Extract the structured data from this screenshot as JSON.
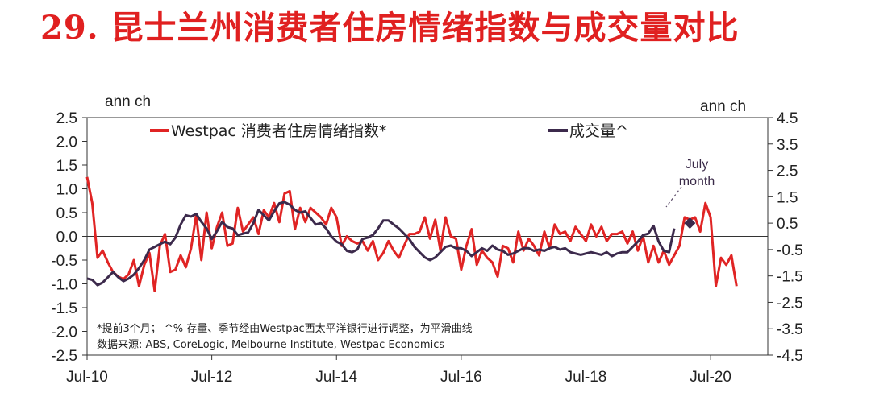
{
  "slide": {
    "title": "29. 昆士兰州消费者住房情绪指数与成交量对比"
  },
  "chart_data": {
    "type": "line",
    "left_unit": "ann ch",
    "right_unit": "ann ch",
    "y_left": {
      "min": -2.5,
      "max": 2.5,
      "ticks": [
        "2.5",
        "2.0",
        "1.5",
        "1.0",
        "0.5",
        "0.0",
        "-0.5",
        "-1.0",
        "-1.5",
        "-2.0",
        "-2.5"
      ]
    },
    "y_right": {
      "min": -4.5,
      "max": 4.5,
      "ticks": [
        "4.5",
        "3.5",
        "2.5",
        "1.5",
        "0.5",
        "-0.5",
        "-1.5",
        "-2.5",
        "-3.5",
        "-4.5"
      ]
    },
    "x_range": [
      "2010-07",
      "2021-06"
    ],
    "x_ticks": [
      "Jul-10",
      "Jul-12",
      "Jul-14",
      "Jul-16",
      "Jul-18",
      "Jul-20"
    ],
    "grid": false,
    "legend": {
      "position": "top",
      "entries": [
        "Westpac 消费者住房情绪指数*",
        "成交量^"
      ]
    },
    "series": [
      {
        "name": "Westpac 消费者住房情绪指数*",
        "axis": "left",
        "color": "#e02424",
        "points": [
          [
            "2010-07",
            1.25
          ],
          [
            "2010-08",
            0.7
          ],
          [
            "2010-09",
            -0.45
          ],
          [
            "2010-10",
            -0.3
          ],
          [
            "2010-11",
            -0.55
          ],
          [
            "2010-12",
            -0.75
          ],
          [
            "2011-01",
            -0.85
          ],
          [
            "2011-02",
            -0.9
          ],
          [
            "2011-03",
            -0.8
          ],
          [
            "2011-04",
            -0.5
          ],
          [
            "2011-05",
            -1.05
          ],
          [
            "2011-06",
            -0.6
          ],
          [
            "2011-07",
            -0.35
          ],
          [
            "2011-08",
            -1.15
          ],
          [
            "2011-09",
            -0.2
          ],
          [
            "2011-10",
            0.05
          ],
          [
            "2011-11",
            -0.75
          ],
          [
            "2011-12",
            -0.7
          ],
          [
            "2012-01",
            -0.4
          ],
          [
            "2012-02",
            -0.65
          ],
          [
            "2012-03",
            -0.25
          ],
          [
            "2012-04",
            0.45
          ],
          [
            "2012-05",
            -0.5
          ],
          [
            "2012-06",
            0.5
          ],
          [
            "2012-07",
            -0.25
          ],
          [
            "2012-08",
            0.2
          ],
          [
            "2012-09",
            0.5
          ],
          [
            "2012-10",
            -0.2
          ],
          [
            "2012-11",
            -0.15
          ],
          [
            "2012-12",
            0.6
          ],
          [
            "2013-01",
            0.1
          ],
          [
            "2013-02",
            0.25
          ],
          [
            "2013-03",
            0.4
          ],
          [
            "2013-04",
            0.05
          ],
          [
            "2013-05",
            0.55
          ],
          [
            "2013-06",
            0.4
          ],
          [
            "2013-07",
            0.7
          ],
          [
            "2013-08",
            0.3
          ],
          [
            "2013-09",
            0.9
          ],
          [
            "2013-10",
            0.95
          ],
          [
            "2013-11",
            0.15
          ],
          [
            "2013-12",
            0.6
          ],
          [
            "2014-01",
            0.3
          ],
          [
            "2014-02",
            0.6
          ],
          [
            "2014-03",
            0.5
          ],
          [
            "2014-04",
            0.4
          ],
          [
            "2014-05",
            0.25
          ],
          [
            "2014-06",
            0.6
          ],
          [
            "2014-07",
            0.4
          ],
          [
            "2014-08",
            -0.2
          ],
          [
            "2014-09",
            0.0
          ],
          [
            "2014-10",
            -0.1
          ],
          [
            "2014-11",
            -0.15
          ],
          [
            "2014-12",
            -0.1
          ],
          [
            "2015-01",
            -0.3
          ],
          [
            "2015-02",
            -0.1
          ],
          [
            "2015-03",
            -0.5
          ],
          [
            "2015-04",
            -0.35
          ],
          [
            "2015-05",
            -0.1
          ],
          [
            "2015-06",
            -0.3
          ],
          [
            "2015-07",
            -0.45
          ],
          [
            "2015-08",
            -0.2
          ],
          [
            "2015-09",
            0.05
          ],
          [
            "2015-10",
            0.05
          ],
          [
            "2015-11",
            0.1
          ],
          [
            "2015-12",
            0.4
          ],
          [
            "2016-01",
            -0.05
          ],
          [
            "2016-02",
            0.35
          ],
          [
            "2016-03",
            -0.3
          ],
          [
            "2016-04",
            0.4
          ],
          [
            "2016-05",
            0.0
          ],
          [
            "2016-06",
            -0.05
          ],
          [
            "2016-07",
            -0.7
          ],
          [
            "2016-08",
            -0.2
          ],
          [
            "2016-09",
            0.15
          ],
          [
            "2016-10",
            -0.6
          ],
          [
            "2016-11",
            -0.3
          ],
          [
            "2016-12",
            -0.45
          ],
          [
            "2017-01",
            -0.55
          ],
          [
            "2017-02",
            -0.85
          ],
          [
            "2017-03",
            -0.2
          ],
          [
            "2017-04",
            -0.25
          ],
          [
            "2017-05",
            -0.55
          ],
          [
            "2017-06",
            0.1
          ],
          [
            "2017-07",
            -0.3
          ],
          [
            "2017-08",
            -0.05
          ],
          [
            "2017-09",
            -0.2
          ],
          [
            "2017-10",
            -0.4
          ],
          [
            "2017-11",
            0.1
          ],
          [
            "2017-12",
            -0.25
          ],
          [
            "2018-01",
            0.25
          ],
          [
            "2018-02",
            0.05
          ],
          [
            "2018-03",
            0.1
          ],
          [
            "2018-04",
            -0.1
          ],
          [
            "2018-05",
            0.2
          ],
          [
            "2018-06",
            0.05
          ],
          [
            "2018-07",
            -0.1
          ],
          [
            "2018-08",
            0.25
          ],
          [
            "2018-09",
            0.0
          ],
          [
            "2018-10",
            0.2
          ],
          [
            "2018-11",
            -0.1
          ],
          [
            "2018-12",
            0.05
          ],
          [
            "2019-01",
            0.05
          ],
          [
            "2019-02",
            0.1
          ],
          [
            "2019-03",
            -0.15
          ],
          [
            "2019-04",
            0.1
          ],
          [
            "2019-05",
            -0.3
          ],
          [
            "2019-06",
            0.0
          ],
          [
            "2019-07",
            -0.55
          ],
          [
            "2019-08",
            -0.2
          ],
          [
            "2019-09",
            -0.55
          ],
          [
            "2019-10",
            -0.3
          ],
          [
            "2019-11",
            -0.6
          ],
          [
            "2019-12",
            -0.4
          ],
          [
            "2020-01",
            -0.2
          ],
          [
            "2020-02",
            0.4
          ],
          [
            "2020-03",
            0.35
          ],
          [
            "2020-04",
            0.4
          ],
          [
            "2020-05",
            0.1
          ],
          [
            "2020-06",
            0.7
          ],
          [
            "2020-07",
            0.4
          ],
          [
            "2020-08",
            -1.05
          ],
          [
            "2020-09",
            -0.45
          ],
          [
            "2020-10",
            -0.6
          ],
          [
            "2020-11",
            -0.4
          ],
          [
            "2020-12",
            -1.05
          ]
        ]
      },
      {
        "name": "成交量^",
        "axis": "right",
        "color": "#3c2a4c",
        "points": [
          [
            "2010-07",
            -1.6
          ],
          [
            "2010-08",
            -1.65
          ],
          [
            "2010-09",
            -1.85
          ],
          [
            "2010-10",
            -1.75
          ],
          [
            "2010-11",
            -1.55
          ],
          [
            "2010-12",
            -1.35
          ],
          [
            "2011-01",
            -1.55
          ],
          [
            "2011-02",
            -1.7
          ],
          [
            "2011-03",
            -1.6
          ],
          [
            "2011-04",
            -1.45
          ],
          [
            "2011-05",
            -1.2
          ],
          [
            "2011-06",
            -0.9
          ],
          [
            "2011-07",
            -0.5
          ],
          [
            "2011-08",
            -0.4
          ],
          [
            "2011-09",
            -0.3
          ],
          [
            "2011-10",
            -0.2
          ],
          [
            "2011-11",
            -0.3
          ],
          [
            "2011-12",
            -0.05
          ],
          [
            "2012-01",
            0.45
          ],
          [
            "2012-02",
            0.8
          ],
          [
            "2012-03",
            0.75
          ],
          [
            "2012-04",
            0.85
          ],
          [
            "2012-05",
            0.55
          ],
          [
            "2012-06",
            0.3
          ],
          [
            "2012-07",
            -0.1
          ],
          [
            "2012-08",
            0.2
          ],
          [
            "2012-09",
            0.55
          ],
          [
            "2012-10",
            0.35
          ],
          [
            "2012-11",
            0.3
          ],
          [
            "2012-12",
            0.05
          ],
          [
            "2013-01",
            0.1
          ],
          [
            "2013-02",
            0.15
          ],
          [
            "2013-03",
            0.5
          ],
          [
            "2013-04",
            1.0
          ],
          [
            "2013-05",
            0.8
          ],
          [
            "2013-06",
            0.6
          ],
          [
            "2013-07",
            0.95
          ],
          [
            "2013-08",
            1.25
          ],
          [
            "2013-09",
            1.3
          ],
          [
            "2013-10",
            1.2
          ],
          [
            "2013-11",
            1.0
          ],
          [
            "2013-12",
            0.9
          ],
          [
            "2014-01",
            0.95
          ],
          [
            "2014-02",
            0.7
          ],
          [
            "2014-03",
            0.45
          ],
          [
            "2014-04",
            0.5
          ],
          [
            "2014-05",
            0.3
          ],
          [
            "2014-06",
            0.0
          ],
          [
            "2014-07",
            -0.2
          ],
          [
            "2014-08",
            -0.3
          ],
          [
            "2014-09",
            -0.55
          ],
          [
            "2014-10",
            -0.6
          ],
          [
            "2014-11",
            -0.5
          ],
          [
            "2014-12",
            -0.1
          ],
          [
            "2015-01",
            -0.05
          ],
          [
            "2015-02",
            0.05
          ],
          [
            "2015-03",
            0.3
          ],
          [
            "2015-04",
            0.6
          ],
          [
            "2015-05",
            0.6
          ],
          [
            "2015-06",
            0.45
          ],
          [
            "2015-07",
            0.3
          ],
          [
            "2015-08",
            0.1
          ],
          [
            "2015-09",
            -0.1
          ],
          [
            "2015-10",
            -0.4
          ],
          [
            "2015-11",
            -0.6
          ],
          [
            "2015-12",
            -0.8
          ],
          [
            "2016-01",
            -0.9
          ],
          [
            "2016-02",
            -0.8
          ],
          [
            "2016-03",
            -0.6
          ],
          [
            "2016-04",
            -0.4
          ],
          [
            "2016-05",
            -0.35
          ],
          [
            "2016-06",
            -0.45
          ],
          [
            "2016-07",
            -0.45
          ],
          [
            "2016-08",
            -0.55
          ],
          [
            "2016-09",
            -0.75
          ],
          [
            "2016-10",
            -0.6
          ],
          [
            "2016-11",
            -0.45
          ],
          [
            "2016-12",
            -0.55
          ],
          [
            "2017-01",
            -0.35
          ],
          [
            "2017-02",
            -0.5
          ],
          [
            "2017-03",
            -0.55
          ],
          [
            "2017-04",
            -0.7
          ],
          [
            "2017-05",
            -0.65
          ],
          [
            "2017-06",
            -0.55
          ],
          [
            "2017-07",
            -0.45
          ],
          [
            "2017-08",
            -0.45
          ],
          [
            "2017-09",
            -0.55
          ],
          [
            "2017-10",
            -0.5
          ],
          [
            "2017-11",
            -0.55
          ],
          [
            "2017-12",
            -0.45
          ],
          [
            "2018-01",
            -0.4
          ],
          [
            "2018-02",
            -0.5
          ],
          [
            "2018-03",
            -0.45
          ],
          [
            "2018-04",
            -0.6
          ],
          [
            "2018-05",
            -0.65
          ],
          [
            "2018-06",
            -0.7
          ],
          [
            "2018-07",
            -0.65
          ],
          [
            "2018-08",
            -0.6
          ],
          [
            "2018-09",
            -0.65
          ],
          [
            "2018-10",
            -0.7
          ],
          [
            "2018-11",
            -0.6
          ],
          [
            "2018-12",
            -0.75
          ],
          [
            "2019-01",
            -0.65
          ],
          [
            "2019-02",
            -0.6
          ],
          [
            "2019-03",
            -0.6
          ],
          [
            "2019-04",
            -0.4
          ],
          [
            "2019-05",
            -0.2
          ],
          [
            "2019-06",
            0.05
          ],
          [
            "2019-07",
            0.1
          ],
          [
            "2019-08",
            0.4
          ],
          [
            "2019-09",
            -0.2
          ],
          [
            "2019-10",
            -0.55
          ],
          [
            "2019-11",
            -0.6
          ],
          [
            "2019-12",
            0.3
          ]
        ]
      }
    ],
    "highlight": {
      "series": "成交量^",
      "x": "2020-03",
      "y": 0.5,
      "label_lines": [
        "July",
        "month"
      ]
    },
    "notes": [
      "*提前3个月；  ^% 存量、季节经由Westpac西太平洋银行进行调整，为平滑曲线",
      "数据来源: ABS, CoreLogic, Melbourne Institute, Westpac Economics"
    ]
  }
}
